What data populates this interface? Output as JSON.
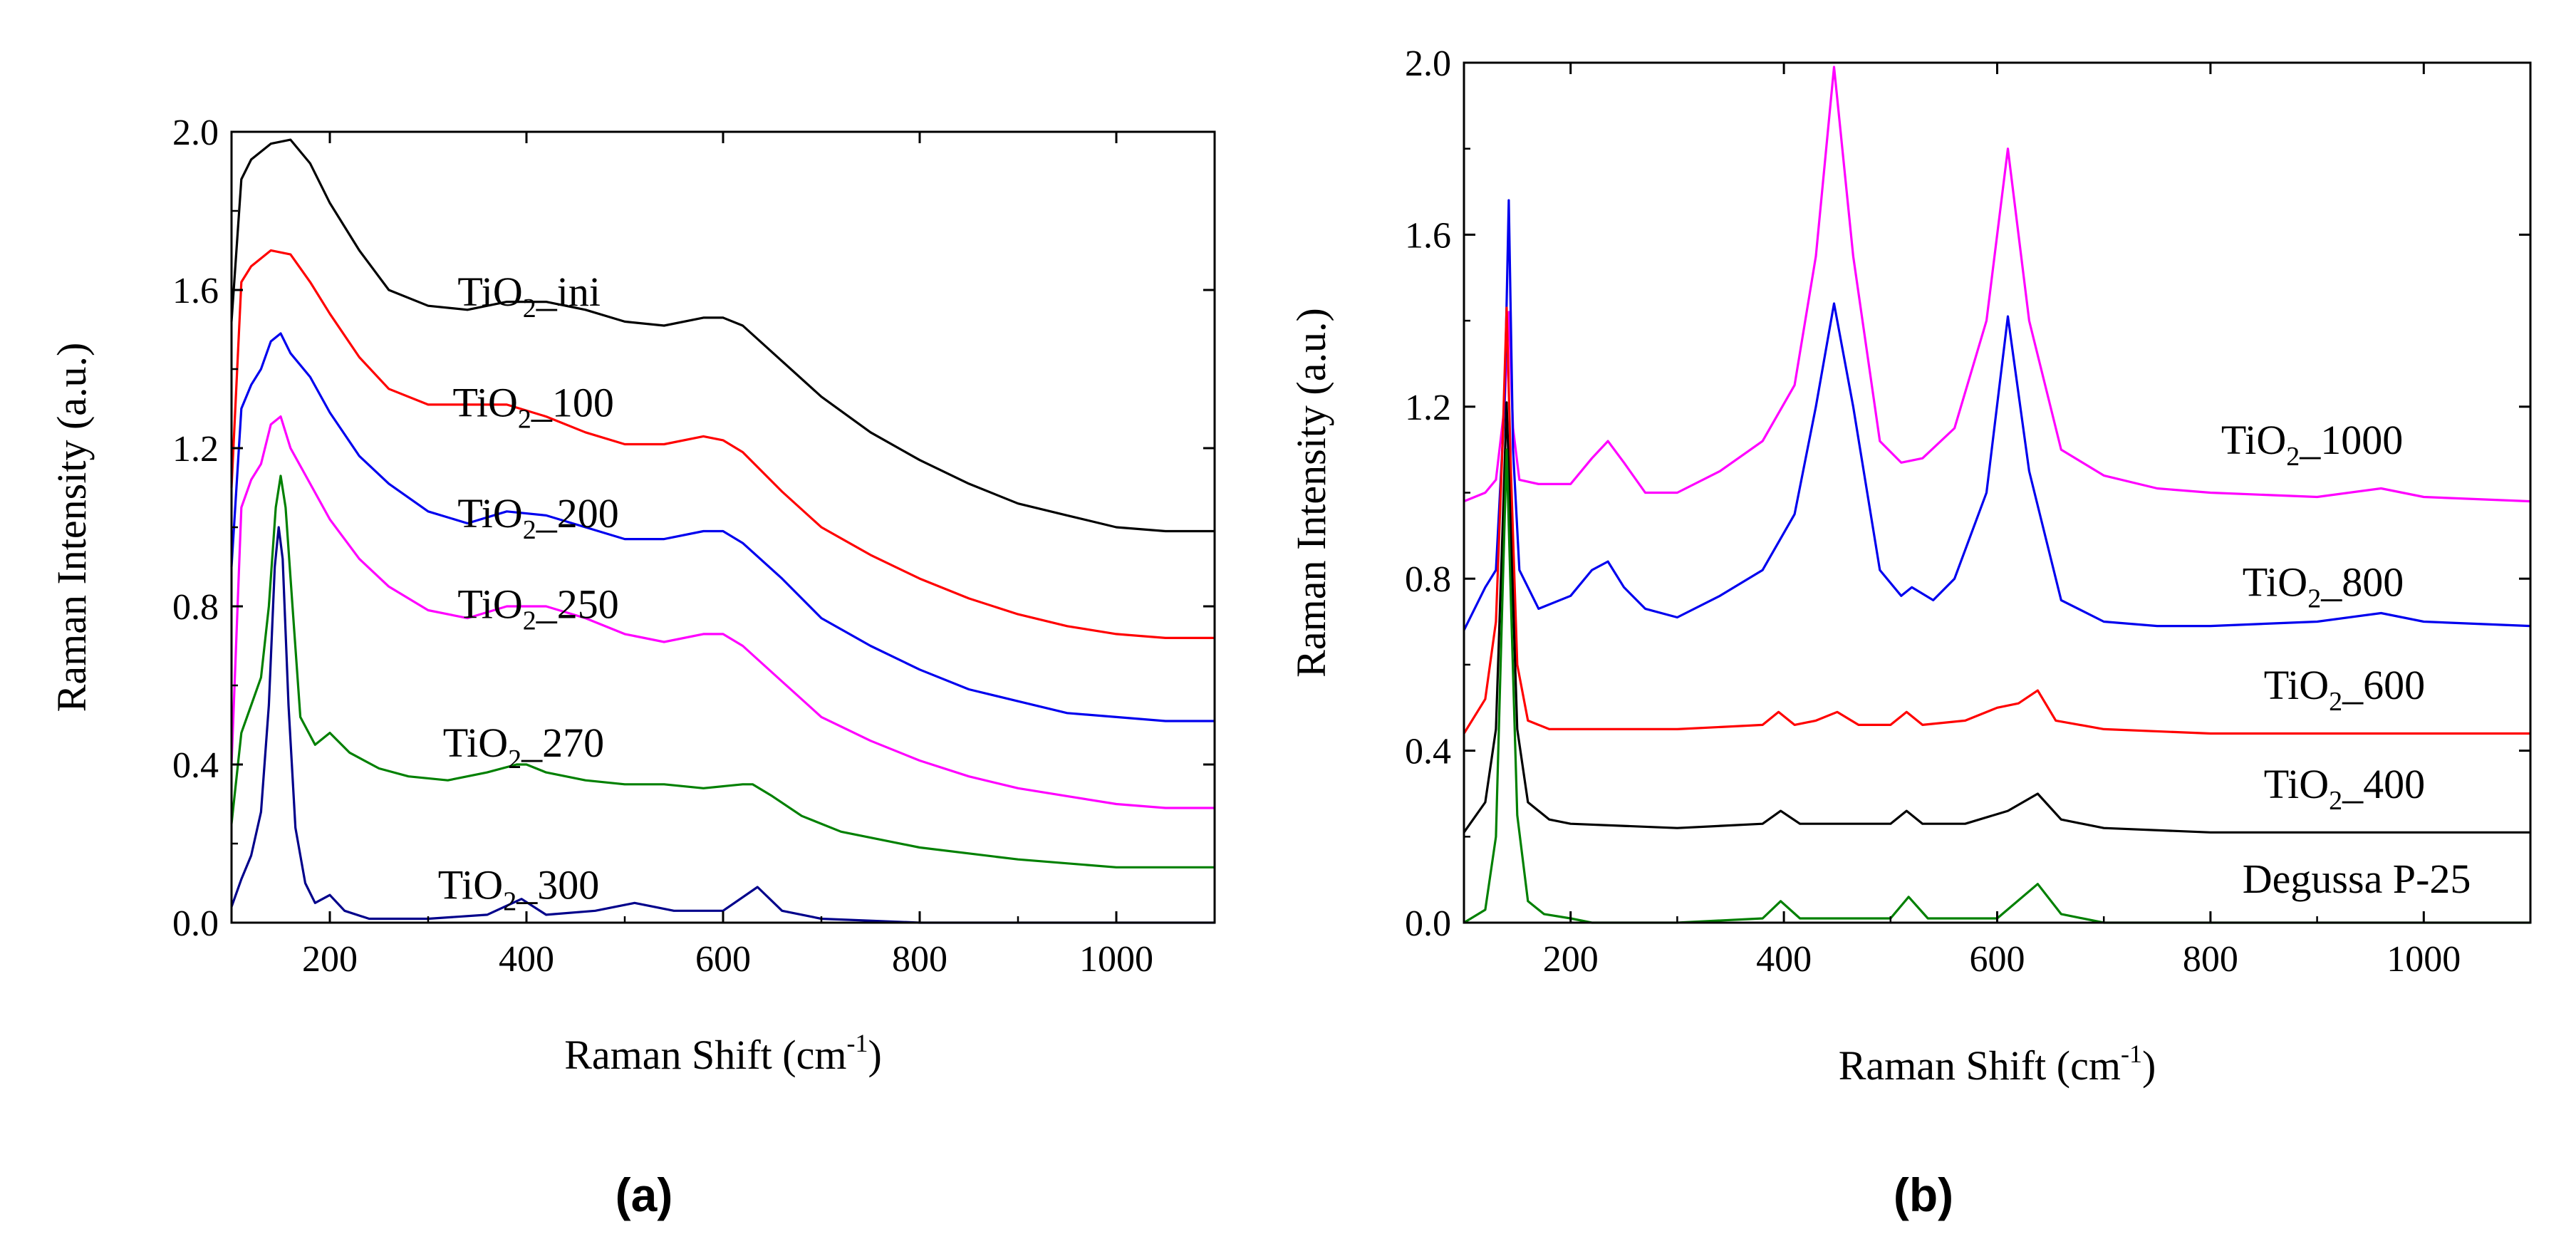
{
  "figure": {
    "panel_labels": [
      "(a)",
      "(b)"
    ]
  },
  "chart_data": [
    {
      "id": "a",
      "type": "line",
      "title": "",
      "xlabel": "Raman Shift (cm",
      "xlabel_sup": "-1",
      "xlabel_tail": ")",
      "ylabel": "Raman Intensity (a.u.)",
      "xlim": [
        100,
        1100
      ],
      "ylim": [
        0,
        2.0
      ],
      "xticks": [
        200,
        400,
        600,
        800,
        1000
      ],
      "yticks": [
        0.0,
        0.4,
        0.8,
        1.2,
        1.6,
        2.0
      ],
      "ytick_labels": [
        "0.0",
        "0.4",
        "0.8",
        "1.2",
        "1.6",
        "2.0"
      ],
      "grid": false,
      "series": [
        {
          "name": "TiO2_ini",
          "label_main": "TiO",
          "label_sub": "2",
          "label_tail": "_ini",
          "color": "#000000",
          "label_at": [
            330,
            1.56
          ],
          "x": [
            100,
            110,
            120,
            140,
            160,
            180,
            200,
            230,
            260,
            300,
            340,
            380,
            420,
            460,
            500,
            540,
            580,
            600,
            620,
            660,
            700,
            750,
            800,
            850,
            900,
            950,
            1000,
            1050,
            1100
          ],
          "y": [
            1.52,
            1.88,
            1.93,
            1.97,
            1.98,
            1.92,
            1.82,
            1.7,
            1.6,
            1.56,
            1.55,
            1.57,
            1.57,
            1.55,
            1.52,
            1.51,
            1.53,
            1.53,
            1.51,
            1.42,
            1.33,
            1.24,
            1.17,
            1.11,
            1.06,
            1.03,
            1.0,
            0.99,
            0.99
          ]
        },
        {
          "name": "TiO2_100",
          "label_main": "TiO",
          "label_sub": "2",
          "label_tail": "_100",
          "color": "#ff0000",
          "label_at": [
            325,
            1.28
          ],
          "x": [
            100,
            110,
            120,
            140,
            160,
            180,
            200,
            230,
            260,
            300,
            340,
            380,
            420,
            460,
            500,
            540,
            580,
            600,
            620,
            660,
            700,
            750,
            800,
            850,
            900,
            950,
            1000,
            1050,
            1100
          ],
          "y": [
            1.1,
            1.62,
            1.66,
            1.7,
            1.69,
            1.62,
            1.54,
            1.43,
            1.35,
            1.31,
            1.31,
            1.31,
            1.28,
            1.24,
            1.21,
            1.21,
            1.23,
            1.22,
            1.19,
            1.09,
            1.0,
            0.93,
            0.87,
            0.82,
            0.78,
            0.75,
            0.73,
            0.72,
            0.72
          ]
        },
        {
          "name": "TiO2_200",
          "label_main": "TiO",
          "label_sub": "2",
          "label_tail": "_200",
          "color": "#0000ee",
          "label_at": [
            330,
            1.0
          ],
          "x": [
            100,
            110,
            120,
            130,
            140,
            150,
            160,
            180,
            200,
            230,
            260,
            300,
            340,
            380,
            420,
            460,
            500,
            540,
            580,
            600,
            620,
            660,
            700,
            750,
            800,
            850,
            900,
            950,
            1000,
            1050,
            1100
          ],
          "y": [
            0.9,
            1.3,
            1.36,
            1.4,
            1.47,
            1.49,
            1.44,
            1.38,
            1.29,
            1.18,
            1.11,
            1.04,
            1.01,
            1.04,
            1.03,
            1.0,
            0.97,
            0.97,
            0.99,
            0.99,
            0.96,
            0.87,
            0.77,
            0.7,
            0.64,
            0.59,
            0.56,
            0.53,
            0.52,
            0.51,
            0.51
          ]
        },
        {
          "name": "TiO2_250",
          "label_main": "TiO",
          "label_sub": "2",
          "label_tail": "_250",
          "color": "#ff00ff",
          "label_at": [
            330,
            0.77
          ],
          "x": [
            100,
            110,
            120,
            130,
            140,
            150,
            160,
            180,
            200,
            230,
            260,
            300,
            340,
            380,
            420,
            460,
            500,
            540,
            580,
            600,
            620,
            660,
            700,
            750,
            800,
            850,
            900,
            950,
            1000,
            1050,
            1100
          ],
          "y": [
            0.4,
            1.05,
            1.12,
            1.16,
            1.26,
            1.28,
            1.2,
            1.11,
            1.02,
            0.92,
            0.85,
            0.79,
            0.77,
            0.8,
            0.8,
            0.77,
            0.73,
            0.71,
            0.73,
            0.73,
            0.7,
            0.61,
            0.52,
            0.46,
            0.41,
            0.37,
            0.34,
            0.32,
            0.3,
            0.29,
            0.29
          ]
        },
        {
          "name": "TiO2_270",
          "label_main": "TiO",
          "label_sub": "2",
          "label_tail": "_270",
          "color": "#008000",
          "label_at": [
            315,
            0.42
          ],
          "x": [
            100,
            110,
            120,
            130,
            138,
            145,
            150,
            155,
            162,
            170,
            185,
            200,
            220,
            250,
            280,
            320,
            360,
            390,
            400,
            420,
            460,
            500,
            540,
            580,
            620,
            630,
            650,
            680,
            720,
            800,
            900,
            1000,
            1100
          ],
          "y": [
            0.25,
            0.48,
            0.55,
            0.62,
            0.8,
            1.05,
            1.13,
            1.05,
            0.8,
            0.52,
            0.45,
            0.48,
            0.43,
            0.39,
            0.37,
            0.36,
            0.38,
            0.4,
            0.4,
            0.38,
            0.36,
            0.35,
            0.35,
            0.34,
            0.35,
            0.35,
            0.32,
            0.27,
            0.23,
            0.19,
            0.16,
            0.14,
            0.14
          ]
        },
        {
          "name": "TiO2_300",
          "label_main": "TiO",
          "label_sub": "2",
          "label_tail": "_300",
          "color": "#00008b",
          "label_at": [
            310,
            0.06
          ],
          "x": [
            100,
            110,
            120,
            130,
            138,
            144,
            148,
            152,
            158,
            165,
            175,
            185,
            200,
            215,
            240,
            300,
            360,
            395,
            420,
            470,
            510,
            550,
            600,
            635,
            660,
            700,
            800,
            900,
            1000,
            1100
          ],
          "y": [
            0.04,
            0.11,
            0.17,
            0.28,
            0.55,
            0.9,
            1.0,
            0.92,
            0.55,
            0.24,
            0.1,
            0.05,
            0.07,
            0.03,
            0.01,
            0.01,
            0.02,
            0.06,
            0.02,
            0.03,
            0.05,
            0.03,
            0.03,
            0.09,
            0.03,
            0.01,
            0.0,
            0.0,
            0.0,
            0.0
          ]
        }
      ]
    },
    {
      "id": "b",
      "type": "line",
      "title": "",
      "xlabel": "Raman Shift (cm",
      "xlabel_sup": "-1",
      "xlabel_tail": ")",
      "ylabel": "Raman Intensity (a.u.)",
      "xlim": [
        100,
        1100
      ],
      "ylim": [
        0,
        2.0
      ],
      "xticks": [
        200,
        400,
        600,
        800,
        1000
      ],
      "yticks": [
        0.0,
        0.4,
        0.8,
        1.2,
        1.6,
        2.0
      ],
      "ytick_labels": [
        "0.0",
        "0.4",
        "0.8",
        "1.2",
        "1.6",
        "2.0"
      ],
      "grid": false,
      "series": [
        {
          "name": "TiO2_1000",
          "label_main": "TiO",
          "label_sub": "2",
          "label_tail": "_1000",
          "color": "#ff00ff",
          "label_at": [
            810,
            1.09
          ],
          "x": [
            100,
            120,
            130,
            138,
            142,
            146,
            152,
            170,
            200,
            220,
            235,
            250,
            270,
            300,
            340,
            380,
            410,
            430,
            447,
            465,
            490,
            510,
            530,
            560,
            590,
            610,
            630,
            660,
            700,
            750,
            800,
            900,
            960,
            1000,
            1100
          ],
          "y": [
            0.98,
            1.0,
            1.03,
            1.2,
            1.42,
            1.15,
            1.03,
            1.02,
            1.02,
            1.08,
            1.12,
            1.07,
            1.0,
            1.0,
            1.05,
            1.12,
            1.25,
            1.55,
            1.99,
            1.55,
            1.12,
            1.07,
            1.08,
            1.15,
            1.4,
            1.8,
            1.4,
            1.1,
            1.04,
            1.01,
            1.0,
            0.99,
            1.01,
            0.99,
            0.98
          ]
        },
        {
          "name": "TiO2_800",
          "label_main": "TiO",
          "label_sub": "2",
          "label_tail": "_800",
          "color": "#0000ee",
          "label_at": [
            830,
            0.76
          ],
          "x": [
            100,
            120,
            130,
            138,
            142,
            146,
            152,
            170,
            200,
            220,
            235,
            250,
            270,
            300,
            340,
            380,
            410,
            430,
            447,
            465,
            490,
            510,
            520,
            540,
            560,
            590,
            610,
            630,
            660,
            700,
            750,
            800,
            900,
            960,
            1000,
            1100
          ],
          "y": [
            0.68,
            0.78,
            0.82,
            1.2,
            1.68,
            1.1,
            0.82,
            0.73,
            0.76,
            0.82,
            0.84,
            0.78,
            0.73,
            0.71,
            0.76,
            0.82,
            0.95,
            1.2,
            1.44,
            1.2,
            0.82,
            0.76,
            0.78,
            0.75,
            0.8,
            1.0,
            1.41,
            1.05,
            0.75,
            0.7,
            0.69,
            0.69,
            0.7,
            0.72,
            0.7,
            0.69
          ]
        },
        {
          "name": "TiO2_600",
          "label_main": "TiO",
          "label_sub": "2",
          "label_tail": "_600",
          "color": "#ff0000",
          "label_at": [
            850,
            0.52
          ],
          "x": [
            100,
            120,
            130,
            136,
            140,
            144,
            150,
            160,
            180,
            200,
            300,
            380,
            395,
            410,
            430,
            450,
            470,
            500,
            515,
            530,
            570,
            600,
            620,
            638,
            655,
            700,
            800,
            900,
            1000,
            1100
          ],
          "y": [
            0.44,
            0.52,
            0.7,
            1.1,
            1.43,
            1.05,
            0.6,
            0.47,
            0.45,
            0.45,
            0.45,
            0.46,
            0.49,
            0.46,
            0.47,
            0.49,
            0.46,
            0.46,
            0.49,
            0.46,
            0.47,
            0.5,
            0.51,
            0.54,
            0.47,
            0.45,
            0.44,
            0.44,
            0.44,
            0.44
          ]
        },
        {
          "name": "TiO2_400",
          "label_main": "TiO",
          "label_sub": "2",
          "label_tail": "_400",
          "color": "#000000",
          "label_at": [
            850,
            0.29
          ],
          "x": [
            100,
            120,
            130,
            136,
            140,
            144,
            150,
            160,
            180,
            200,
            300,
            380,
            397,
            415,
            450,
            500,
            515,
            530,
            570,
            610,
            638,
            660,
            700,
            800,
            900,
            1000,
            1100
          ],
          "y": [
            0.21,
            0.28,
            0.45,
            0.9,
            1.21,
            0.9,
            0.45,
            0.28,
            0.24,
            0.23,
            0.22,
            0.23,
            0.26,
            0.23,
            0.23,
            0.23,
            0.26,
            0.23,
            0.23,
            0.26,
            0.3,
            0.24,
            0.22,
            0.21,
            0.21,
            0.21,
            0.21
          ]
        },
        {
          "name": "Degussa P-25",
          "label_main": "Degussa P-25",
          "label_sub": "",
          "label_tail": "",
          "color": "#008000",
          "label_at": [
            830,
            0.07
          ],
          "x": [
            100,
            120,
            130,
            136,
            140,
            144,
            150,
            160,
            175,
            200,
            220,
            300,
            380,
            397,
            415,
            500,
            517,
            535,
            600,
            638,
            660,
            700,
            800,
            900,
            1000,
            1100
          ],
          "y": [
            0.0,
            0.03,
            0.2,
            0.75,
            1.1,
            0.75,
            0.25,
            0.05,
            0.02,
            0.01,
            0.0,
            0.0,
            0.01,
            0.05,
            0.01,
            0.01,
            0.06,
            0.01,
            0.01,
            0.09,
            0.02,
            0.0,
            0.0,
            0.0,
            0.0,
            0.0
          ]
        }
      ]
    }
  ]
}
